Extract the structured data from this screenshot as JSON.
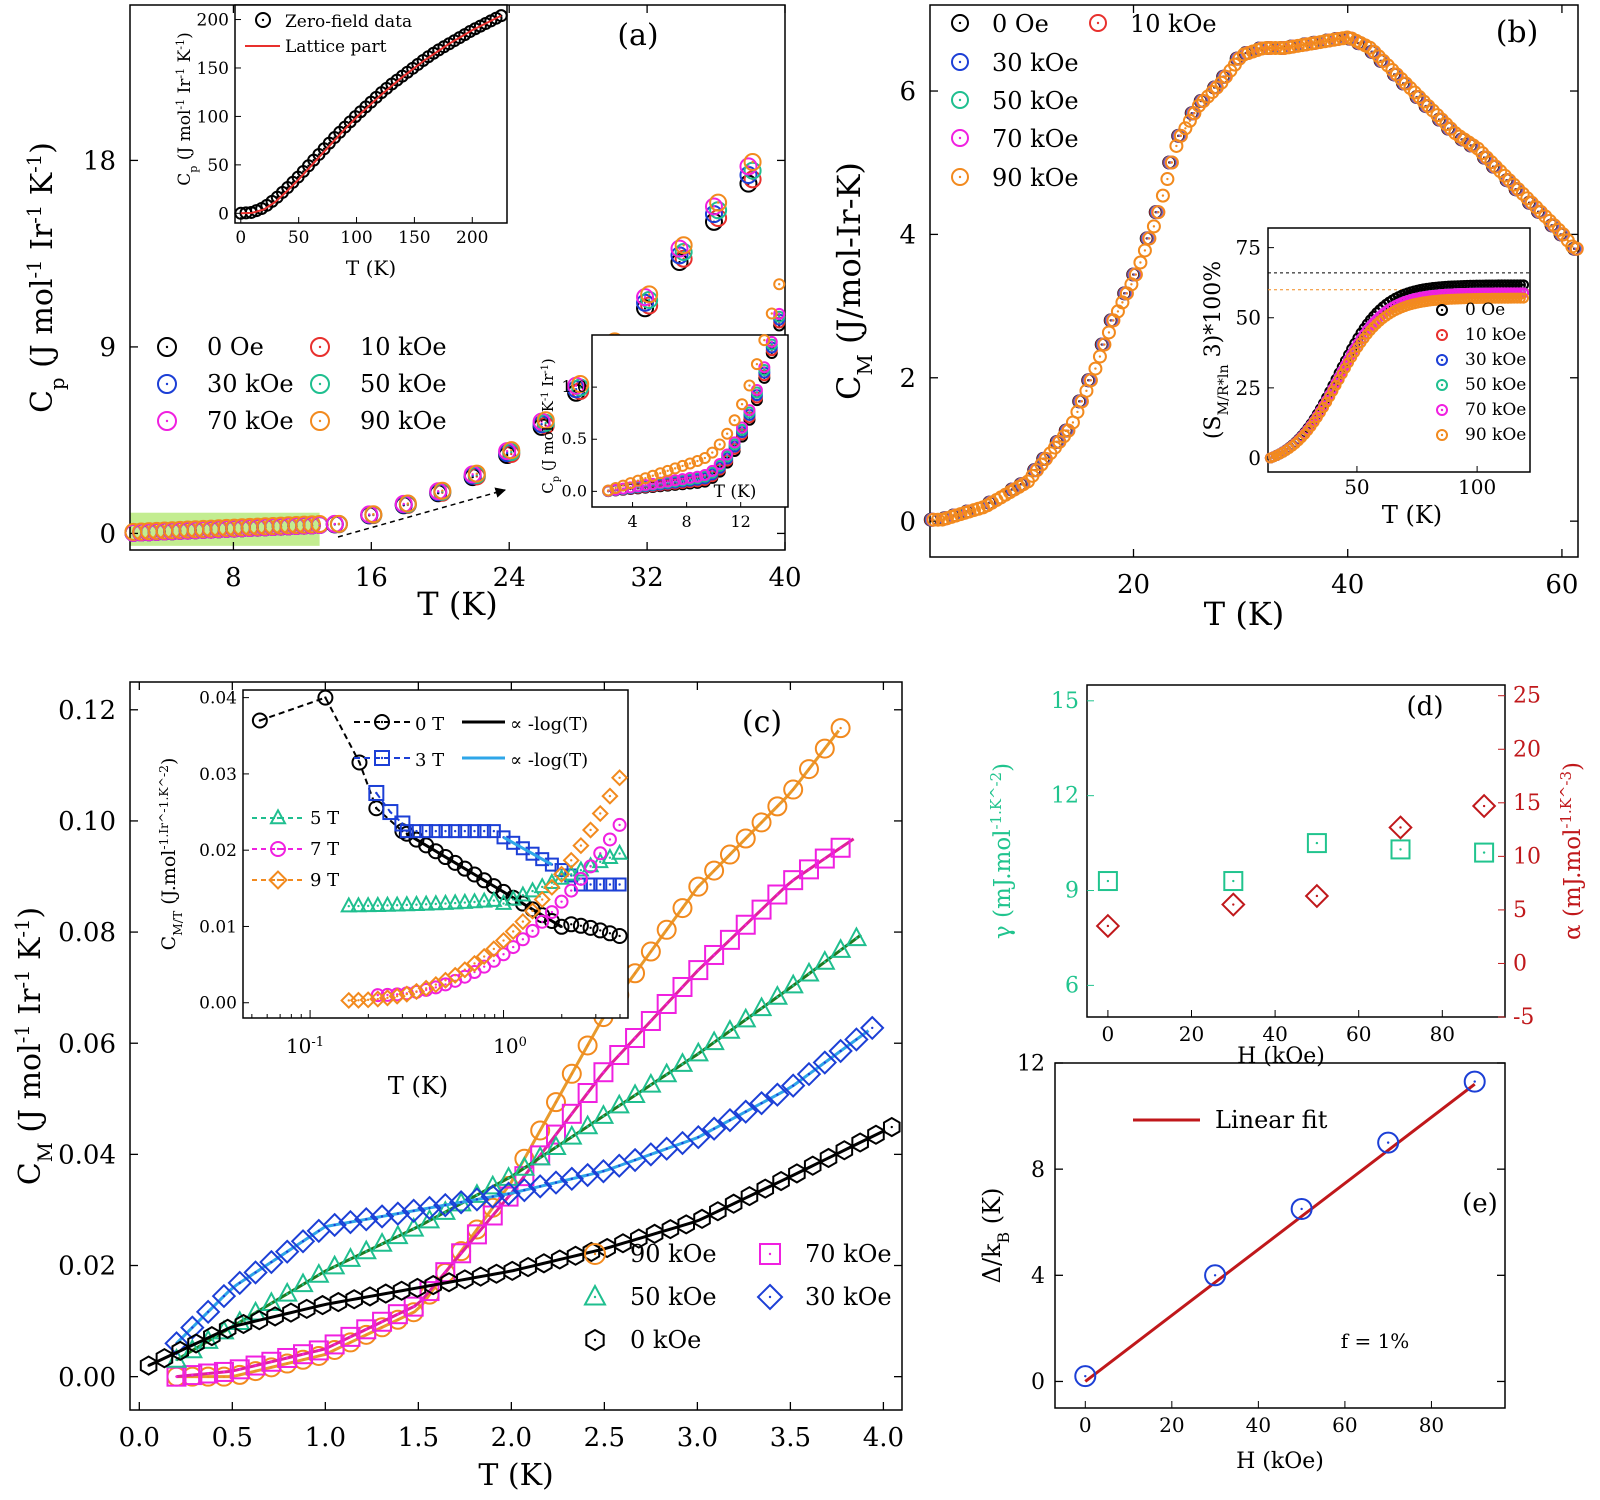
{
  "panels": {
    "a": {
      "tag": "(a)",
      "xlabel": "T (K)",
      "ylabel": "C_p (J mol^-1 Ir^-1 K^-1)",
      "xticks": [
        8,
        16,
        24,
        32,
        40
      ],
      "yticks": [
        0,
        9,
        18
      ],
      "legend": [
        "0 Oe",
        "10 kOe",
        "30 kOe",
        "50 kOe",
        "70 kOe",
        "90 kOe"
      ],
      "inset_top": {
        "xlabel": "T (K)",
        "ylabel": "C_p (J mol^-1 Ir^-1 K^-1)",
        "xticks": [
          0,
          50,
          100,
          150,
          200
        ],
        "yticks": [
          0,
          50,
          100,
          150,
          200
        ],
        "legend": [
          "Zero-field data",
          "Lattice part"
        ]
      },
      "inset_bottom": {
        "xlabel": "T (K)",
        "ylabel": "C_p (J mol^-1 K^-1 Ir^-1)",
        "xticks": [
          4,
          8,
          12
        ],
        "yticks": [
          "0.0",
          "0.5",
          "1.0"
        ]
      }
    },
    "b": {
      "tag": "(b)",
      "xlabel": "T (K)",
      "ylabel": "C_M (J/mol-Ir-K)",
      "xticks": [
        20,
        40,
        60
      ],
      "yticks": [
        0,
        2,
        4,
        6
      ],
      "legend": [
        "0 Oe",
        "10 kOe",
        "30 kOe",
        "50 kOe",
        "70 kOe",
        "90 kOe"
      ],
      "inset": {
        "xlabel": "T (K)",
        "ylabel": "(S_M/R*ln 3)*100%",
        "xticks": [
          50,
          100
        ],
        "yticks": [
          0,
          25,
          50,
          75
        ],
        "legend": [
          "0 Oe",
          "10 kOe",
          "30 kOe",
          "50 kOe",
          "70 kOe",
          "90 kOe"
        ]
      }
    },
    "c": {
      "tag": "(c)",
      "xlabel": "T (K)",
      "ylabel": "C_M (J mol^-1 Ir^-1 K^-1)",
      "xticks": [
        "0.0",
        "0.5",
        "1.0",
        "1.5",
        "2.0",
        "2.5",
        "3.0",
        "3.5",
        "4.0"
      ],
      "yticks": [
        "0.00",
        "0.02",
        "0.04",
        "0.06",
        "0.08",
        "0.10",
        "0.12"
      ],
      "legend": [
        "90 kOe",
        "70 kOe",
        "50 kOe",
        "30 kOe",
        "0 kOe"
      ],
      "inset": {
        "xlabel": "T (K)",
        "ylabel": "C_M/T (J.mol^-1.Ir^-1.K^-2)",
        "xticks": [
          "10^-1",
          "10^0"
        ],
        "yticks": [
          "0.00",
          "0.01",
          "0.02",
          "0.03",
          "0.04"
        ],
        "legend": [
          "0 T",
          "3 T",
          "5 T",
          "7 T",
          "9 T",
          "∝ -log(T)",
          "∝ -log(T)"
        ]
      }
    },
    "d": {
      "tag": "(d)",
      "xlabel": "H (kOe)",
      "ylabel_left": "γ (mJ.mol^-1.K^-2)",
      "ylabel_right": "α (mJ.mol^-1.K^-3)",
      "xticks": [
        0,
        20,
        40,
        60,
        80
      ],
      "yticks_left": [
        6,
        9,
        12,
        15
      ],
      "yticks_right": [
        -5,
        0,
        5,
        10,
        15,
        20,
        25
      ]
    },
    "e": {
      "tag": "(e)",
      "xlabel": "H (kOe)",
      "ylabel": "Δ/k_B (K)",
      "xticks": [
        0,
        20,
        40,
        60,
        80
      ],
      "yticks": [
        0,
        4,
        8,
        12
      ],
      "legend": [
        "Linear fit"
      ],
      "annotation": "f = 1%"
    }
  },
  "colors": {
    "0 Oe": "#000000",
    "10 kOe": "#e8302d",
    "30 kOe": "#1c3fd6",
    "50 kOe": "#1fbf8f",
    "70 kOe": "#f020e0",
    "90 kOe": "#f28a1e",
    "gamma": "#21c48e",
    "alpha": "#c0181b",
    "fit_blue": "#2ea6e8",
    "fit_green": "#1f7a1f",
    "fit_orange": "#e89a2c",
    "fit_pink": "#e0209a",
    "highlight": "#b8ea7c"
  },
  "chart_data": [
    {
      "panel": "a",
      "type": "scatter",
      "xlim": [
        2,
        40
      ],
      "ylim": [
        -0.8,
        25.5
      ],
      "series": [
        {
          "name": "0 Oe",
          "x": [
            14,
            16,
            18,
            20,
            22,
            24,
            26,
            28,
            30,
            32,
            34,
            36,
            38
          ],
          "y": [
            0.45,
            0.9,
            1.4,
            2.0,
            2.8,
            3.9,
            5.3,
            7.0,
            9.0,
            11.2,
            13.5,
            15.5,
            17.4
          ]
        },
        {
          "name": "90 kOe",
          "x": [
            14,
            16,
            18,
            20,
            22,
            24,
            26,
            28,
            30,
            32,
            34,
            36,
            38
          ],
          "y": [
            0.45,
            0.9,
            1.4,
            2.0,
            2.8,
            3.9,
            5.3,
            7.0,
            9.0,
            11.2,
            13.5,
            15.5,
            17.4
          ]
        }
      ]
    },
    {
      "panel": "a-inset-top",
      "type": "scatter",
      "xlim": [
        -5,
        230
      ],
      "ylim": [
        -10,
        215
      ],
      "series": [
        {
          "name": "Zero-field data",
          "x": [
            0,
            10,
            20,
            30,
            40,
            50,
            60,
            70,
            80,
            90,
            100,
            110,
            120,
            130,
            140,
            150,
            160,
            170,
            180,
            190,
            200,
            210,
            225
          ],
          "y": [
            0,
            1,
            6,
            15,
            26,
            38,
            51,
            64,
            77,
            89,
            101,
            112,
            123,
            133,
            142,
            151,
            160,
            168,
            175,
            182,
            189,
            195,
            204
          ]
        },
        {
          "name": "Lattice part",
          "x": [
            0,
            10,
            20,
            30,
            40,
            50,
            60,
            70,
            80,
            90,
            100,
            110,
            120,
            130,
            140,
            150,
            160,
            170,
            180,
            190,
            200,
            210,
            225
          ],
          "y": [
            0,
            0.5,
            4,
            12,
            23,
            35,
            48,
            61,
            74,
            87,
            99,
            110,
            121,
            131,
            141,
            150,
            159,
            167,
            175,
            182,
            189,
            195,
            204
          ]
        }
      ]
    },
    {
      "panel": "b",
      "type": "scatter",
      "xlim": [
        1,
        61.5
      ],
      "ylim": [
        -0.5,
        7.2
      ],
      "series": [
        {
          "name": "0 Oe",
          "x": [
            2,
            6,
            10,
            14,
            16,
            18,
            20,
            22,
            24,
            26,
            28,
            30,
            32,
            34,
            36,
            38,
            40,
            42,
            44,
            46,
            48,
            50,
            52,
            54,
            56,
            58,
            60,
            61
          ],
          "y": [
            0.02,
            0.2,
            0.55,
            1.3,
            2.0,
            2.8,
            3.4,
            4.2,
            5.3,
            5.8,
            6.1,
            6.5,
            6.6,
            6.6,
            6.65,
            6.7,
            6.75,
            6.6,
            6.3,
            6.0,
            5.7,
            5.4,
            5.2,
            4.9,
            4.6,
            4.3,
            4.0,
            3.8
          ]
        },
        {
          "name": "90 kOe",
          "x": [
            2,
            6,
            10,
            14,
            16,
            18,
            20,
            22,
            24,
            26,
            28,
            30,
            32,
            34,
            36,
            38,
            40,
            42,
            44,
            46,
            48,
            50,
            52,
            54,
            56,
            58,
            60,
            61
          ],
          "y": [
            0.02,
            0.2,
            0.55,
            1.3,
            2.0,
            2.8,
            3.4,
            4.2,
            5.3,
            5.8,
            6.1,
            6.5,
            6.6,
            6.6,
            6.65,
            6.7,
            6.75,
            6.6,
            6.3,
            6.0,
            5.7,
            5.4,
            5.2,
            4.9,
            4.6,
            4.3,
            4.0,
            3.8
          ]
        }
      ]
    },
    {
      "panel": "c",
      "type": "scatter",
      "xlim": [
        -0.05,
        4.1
      ],
      "ylim": [
        -0.006,
        0.125
      ],
      "series": [
        {
          "name": "90 kOe",
          "x": [
            0.2,
            0.5,
            1.0,
            1.5,
            2.0,
            2.5,
            3.0,
            3.5,
            3.8
          ],
          "y": [
            0.0,
            0.0,
            0.004,
            0.012,
            0.035,
            0.065,
            0.088,
            0.105,
            0.118
          ]
        },
        {
          "name": "70 kOe",
          "x": [
            0.2,
            0.5,
            1.0,
            1.5,
            2.0,
            2.5,
            3.0,
            3.5,
            3.85
          ],
          "y": [
            0.0,
            0.001,
            0.005,
            0.013,
            0.033,
            0.055,
            0.073,
            0.089,
            0.097
          ]
        },
        {
          "name": "50 kOe",
          "x": [
            0.2,
            0.5,
            1.0,
            1.5,
            2.0,
            2.5,
            3.0,
            3.5,
            3.9
          ],
          "y": [
            0.003,
            0.009,
            0.019,
            0.027,
            0.036,
            0.047,
            0.058,
            0.07,
            0.08
          ]
        },
        {
          "name": "30 kOe",
          "x": [
            0.2,
            0.5,
            1.0,
            1.5,
            2.0,
            2.5,
            3.0,
            3.5,
            3.95
          ],
          "y": [
            0.006,
            0.016,
            0.027,
            0.03,
            0.033,
            0.037,
            0.043,
            0.052,
            0.063
          ]
        },
        {
          "name": "0 kOe",
          "x": [
            0.05,
            0.5,
            1.0,
            1.5,
            2.0,
            2.5,
            3.0,
            3.5,
            4.05
          ],
          "y": [
            0.002,
            0.009,
            0.013,
            0.016,
            0.019,
            0.023,
            0.028,
            0.036,
            0.045
          ]
        }
      ]
    },
    {
      "panel": "d",
      "type": "scatter",
      "xlim": [
        -5,
        95
      ],
      "series": [
        {
          "name": "γ",
          "axis": "left",
          "ylim": [
            5,
            15.5
          ],
          "x": [
            0,
            30,
            50,
            70,
            90
          ],
          "y": [
            9.3,
            9.3,
            10.5,
            10.3,
            10.2
          ]
        },
        {
          "name": "α",
          "axis": "right",
          "ylim": [
            -5,
            26
          ],
          "x": [
            0,
            30,
            50,
            70,
            90
          ],
          "y": [
            3.5,
            5.5,
            6.3,
            12.7,
            14.7
          ]
        }
      ]
    },
    {
      "panel": "e",
      "type": "scatter",
      "xlim": [
        -7,
        97
      ],
      "ylim": [
        -1,
        12
      ],
      "series": [
        {
          "name": "Δ/k_B",
          "x": [
            0,
            30,
            50,
            70,
            90
          ],
          "y": [
            0.2,
            4.0,
            6.5,
            9.0,
            11.3
          ]
        },
        {
          "name": "Linear fit",
          "x": [
            0,
            90
          ],
          "y": [
            0.0,
            11.2
          ]
        }
      ]
    }
  ]
}
